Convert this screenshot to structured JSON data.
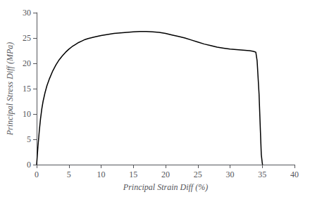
{
  "chart_data": {
    "type": "line",
    "xlabel": "Principal Strain Diff (%)",
    "ylabel": "Principal Stress Diff (MPa)",
    "xlim": [
      0,
      40
    ],
    "ylim": [
      0,
      30
    ],
    "xticks": [
      0,
      5,
      10,
      15,
      20,
      25,
      30,
      35,
      40
    ],
    "yticks": [
      0,
      5,
      10,
      15,
      20,
      25,
      30
    ],
    "color": "#000000",
    "grid": false,
    "x": [
      0.0,
      0.2,
      0.4,
      0.6,
      0.8,
      1.0,
      1.3,
      1.6,
      2.0,
      2.5,
      3.0,
      3.5,
      4.0,
      4.5,
      5.0,
      5.5,
      6.0,
      6.5,
      7.0,
      7.5,
      8.0,
      9.0,
      10.0,
      11.0,
      12.0,
      13.0,
      14.0,
      15.0,
      16.0,
      17.0,
      18.0,
      19.0,
      20.0,
      21.0,
      22.0,
      23.0,
      24.0,
      25.0,
      26.0,
      27.0,
      28.0,
      29.0,
      30.0,
      31.0,
      32.0,
      33.0,
      33.5,
      33.8,
      34.0,
      34.2,
      34.5,
      34.7,
      34.85,
      35.0,
      35.05
    ],
    "values": [
      0.0,
      3.5,
      6.5,
      9.0,
      11.0,
      12.5,
      14.2,
      15.6,
      17.0,
      18.5,
      19.7,
      20.7,
      21.5,
      22.2,
      22.8,
      23.3,
      23.7,
      24.1,
      24.4,
      24.7,
      24.9,
      25.2,
      25.5,
      25.7,
      25.9,
      26.0,
      26.1,
      26.2,
      26.3,
      26.3,
      26.2,
      26.1,
      25.9,
      25.6,
      25.3,
      25.0,
      24.6,
      24.2,
      23.8,
      23.5,
      23.2,
      23.0,
      22.8,
      22.7,
      22.6,
      22.5,
      22.4,
      22.3,
      22.2,
      20.5,
      14.0,
      7.0,
      2.0,
      0.3,
      0.0
    ]
  }
}
